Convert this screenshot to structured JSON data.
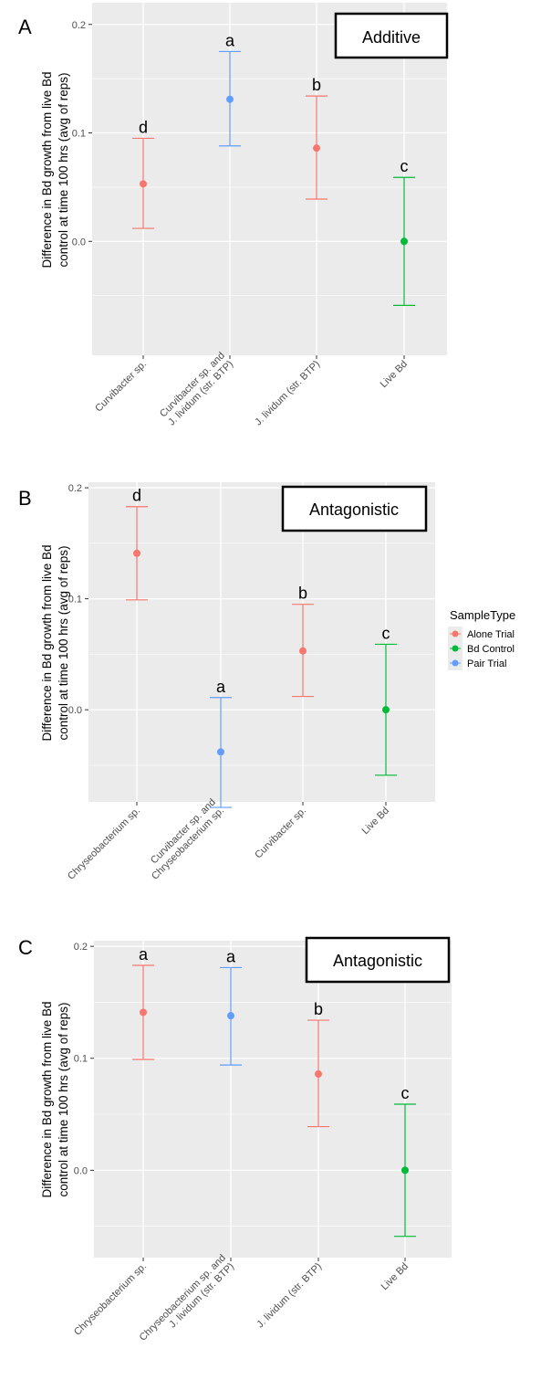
{
  "figure": {
    "y_axis_title_line1": "Difference in Bd growth from live Bd",
    "y_axis_title_line2": "control at time 100 hrs (avg of reps)",
    "legend": {
      "title": "SampleType",
      "items": [
        {
          "label": "Alone Trial",
          "color": "#F8766D"
        },
        {
          "label": "Bd Control",
          "color": "#00BA38"
        },
        {
          "label": "Pair Trial",
          "color": "#619CFF"
        }
      ]
    }
  },
  "colors": {
    "Alone Trial": "#F8766D",
    "Bd Control": "#00BA38",
    "Pair Trial": "#619CFF",
    "panel_background": "#EBEBEB",
    "grid": "#FFFFFF"
  },
  "chart_data": [
    {
      "type": "scatter",
      "panel_letter": "A",
      "interaction_label": "Additive",
      "ylim": [
        -0.105,
        0.22
      ],
      "yticks": [
        "0.0",
        "0.1",
        "0.2"
      ],
      "ytick_values": [
        0.0,
        0.1,
        0.2
      ],
      "categories": [
        {
          "label_lines": [
            "Curvibacter sp."
          ],
          "group": "Alone Trial",
          "mean": 0.053,
          "lower": 0.012,
          "upper": 0.095,
          "letter": "d"
        },
        {
          "label_lines": [
            "Curvibacter sp. and",
            "J. lividum (str. BTP)"
          ],
          "group": "Pair Trial",
          "mean": 0.131,
          "lower": 0.088,
          "upper": 0.175,
          "letter": "a"
        },
        {
          "label_lines": [
            "J. lividum (str. BTP)"
          ],
          "group": "Alone Trial",
          "mean": 0.086,
          "lower": 0.039,
          "upper": 0.134,
          "letter": "b"
        },
        {
          "label_lines": [
            "Live Bd"
          ],
          "group": "Bd Control",
          "mean": 0.0,
          "lower": -0.059,
          "upper": 0.059,
          "letter": "c"
        }
      ]
    },
    {
      "type": "scatter",
      "panel_letter": "B",
      "interaction_label": "Antagonistic",
      "ylim": [
        -0.083,
        0.205
      ],
      "yticks": [
        "0.0",
        "0.1",
        "0.2"
      ],
      "ytick_values": [
        0.0,
        0.1,
        0.2
      ],
      "categories": [
        {
          "label_lines": [
            "Chryseobacterium sp."
          ],
          "group": "Alone Trial",
          "mean": 0.141,
          "lower": 0.099,
          "upper": 0.183,
          "letter": "d"
        },
        {
          "label_lines": [
            "Curvibacter sp. and",
            "Chryseobacterium sp."
          ],
          "group": "Pair Trial",
          "mean": -0.038,
          "lower": -0.088,
          "upper": 0.011,
          "letter": "a"
        },
        {
          "label_lines": [
            "Curvibacter sp."
          ],
          "group": "Alone Trial",
          "mean": 0.053,
          "lower": 0.012,
          "upper": 0.095,
          "letter": "b"
        },
        {
          "label_lines": [
            "Live Bd"
          ],
          "group": "Bd Control",
          "mean": 0.0,
          "lower": -0.059,
          "upper": 0.059,
          "letter": "c"
        }
      ]
    },
    {
      "type": "scatter",
      "panel_letter": "C",
      "interaction_label": "Antagonistic",
      "ylim": [
        -0.078,
        0.205
      ],
      "yticks": [
        "0.0",
        "0.1",
        "0.2"
      ],
      "ytick_values": [
        0.0,
        0.1,
        0.2
      ],
      "categories": [
        {
          "label_lines": [
            "Chryseobacterium sp."
          ],
          "group": "Alone Trial",
          "mean": 0.141,
          "lower": 0.099,
          "upper": 0.183,
          "letter": "a"
        },
        {
          "label_lines": [
            "Chryseobacterium sp. and",
            "J. lividum (str. BTP)"
          ],
          "group": "Pair Trial",
          "mean": 0.138,
          "lower": 0.094,
          "upper": 0.181,
          "letter": "a"
        },
        {
          "label_lines": [
            "J. lividum (str. BTP)"
          ],
          "group": "Alone Trial",
          "mean": 0.086,
          "lower": 0.039,
          "upper": 0.134,
          "letter": "b"
        },
        {
          "label_lines": [
            "Live Bd"
          ],
          "group": "Bd Control",
          "mean": 0.0,
          "lower": -0.059,
          "upper": 0.059,
          "letter": "c"
        }
      ]
    }
  ]
}
